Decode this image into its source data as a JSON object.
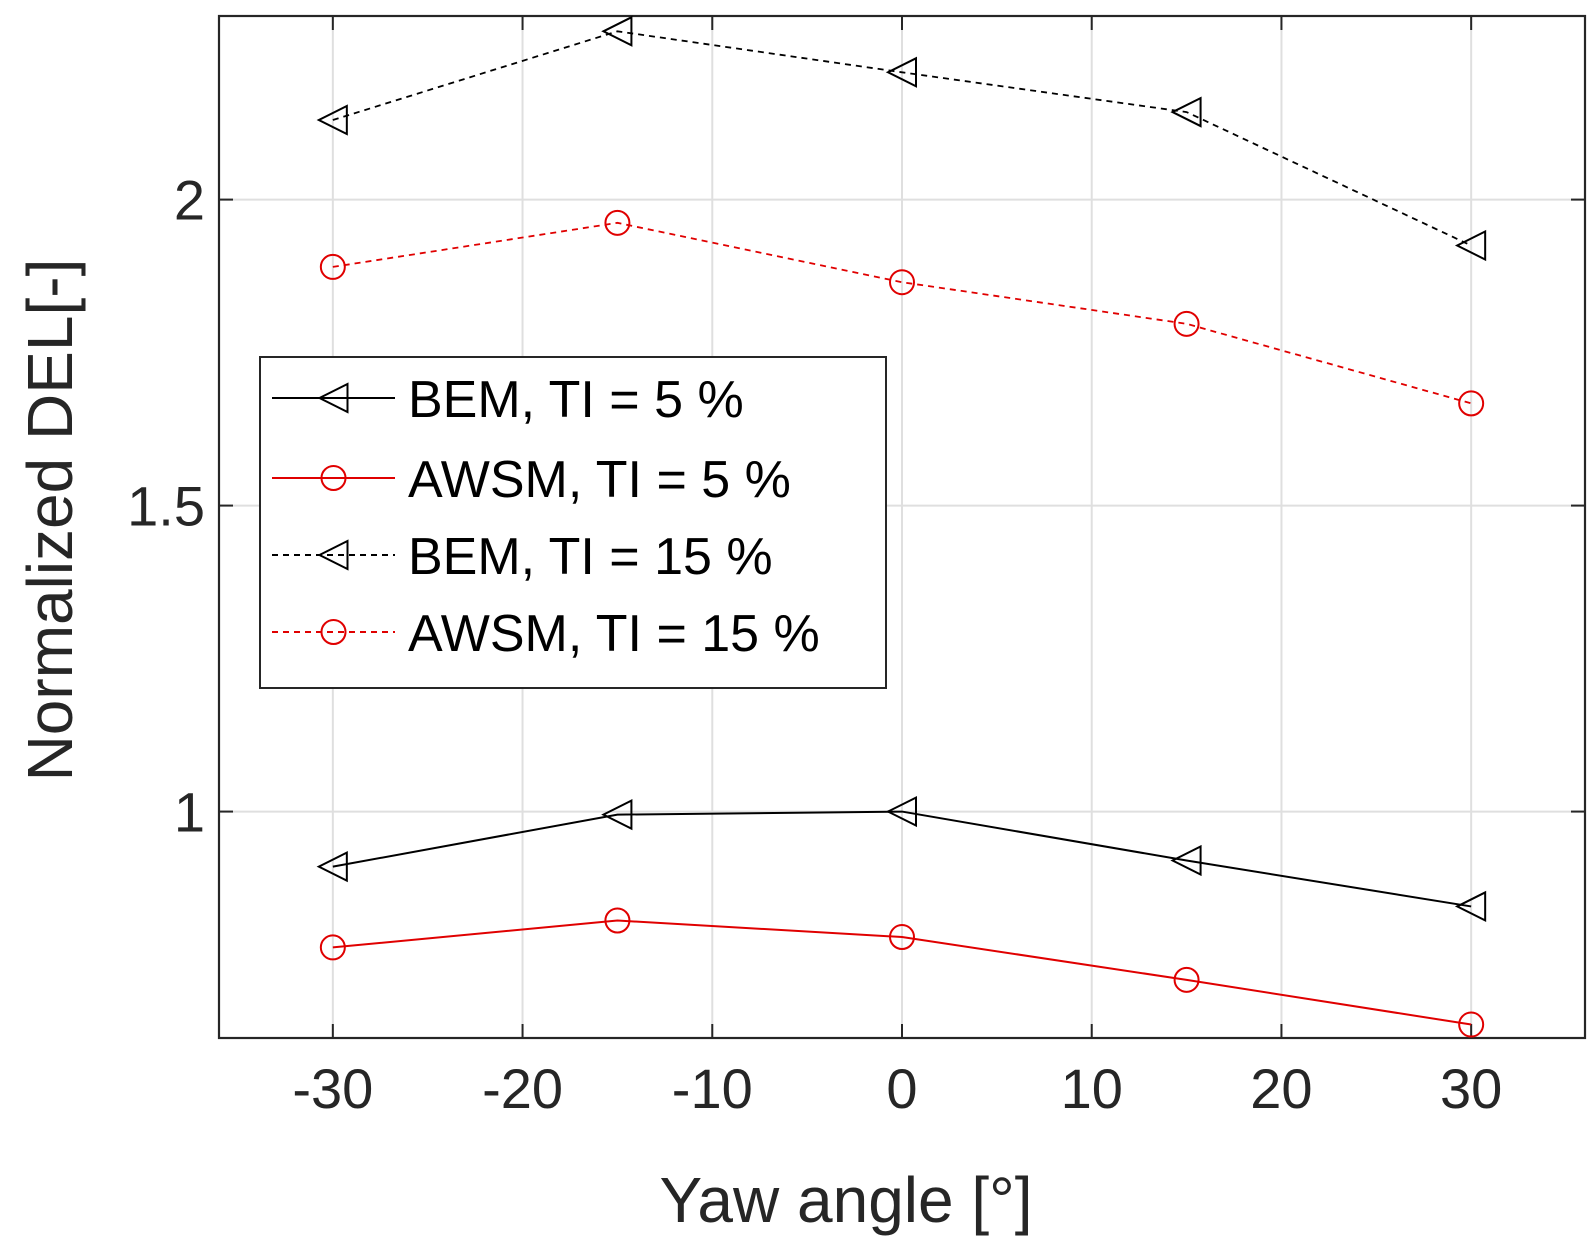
{
  "chart_data": {
    "type": "line",
    "title": "",
    "xlabel": "Yaw angle [°]",
    "ylabel": "Normalized DEL[-]",
    "xlim": [
      -36,
      36
    ],
    "ylim": [
      0.63,
      2.3
    ],
    "xticks": [
      -30,
      -20,
      -10,
      0,
      10,
      20,
      30
    ],
    "xtick_labels": [
      "-30",
      "-20",
      "-10",
      "0",
      "10",
      "20",
      "30"
    ],
    "yticks": [
      1,
      1.5,
      2
    ],
    "ytick_labels": [
      "1",
      "1.5",
      "2"
    ],
    "grid": true,
    "legend_position": "middle-left",
    "x": [
      -30,
      -15,
      0,
      15,
      30
    ],
    "series": [
      {
        "name": "BEM, TI = 5 %",
        "color": "#000000",
        "line": "solid",
        "marker": "triangle-left",
        "values": [
          0.91,
          0.995,
          1.0,
          0.92,
          0.845
        ]
      },
      {
        "name": "AWSM, TI = 5 %",
        "color": "#e00000",
        "line": "solid",
        "marker": "circle",
        "values": [
          0.778,
          0.822,
          0.795,
          0.725,
          0.652
        ]
      },
      {
        "name": "BEM, TI = 15 %",
        "color": "#000000",
        "line": "dashed",
        "marker": "triangle-left",
        "values": [
          2.13,
          2.275,
          2.208,
          2.143,
          1.925
        ]
      },
      {
        "name": "AWSM, TI = 15 %",
        "color": "#e00000",
        "line": "dashed",
        "marker": "circle",
        "values": [
          1.89,
          1.962,
          1.865,
          1.797,
          1.667
        ]
      }
    ]
  }
}
